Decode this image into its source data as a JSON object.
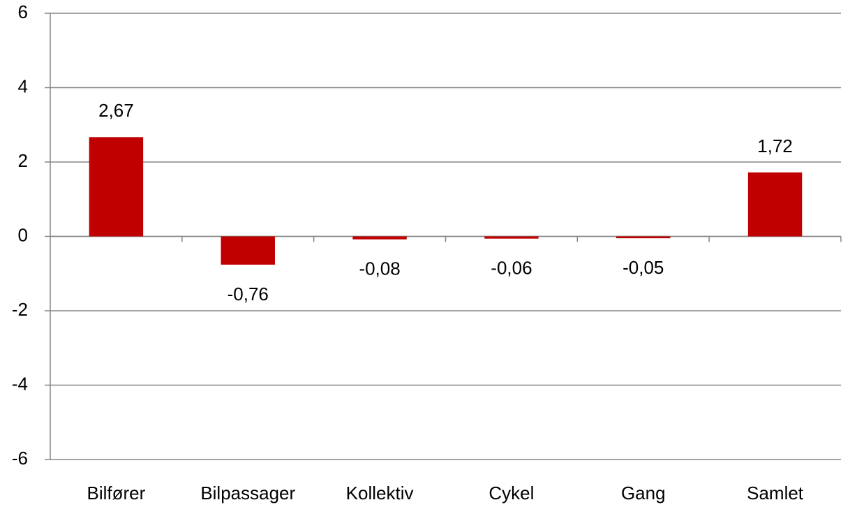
{
  "chart_data": {
    "type": "bar",
    "categories": [
      "Bilfører",
      "Bilpassager",
      "Kollektiv",
      "Cykel",
      "Gang",
      "Samlet"
    ],
    "values": [
      2.67,
      -0.76,
      -0.08,
      -0.06,
      -0.05,
      1.72
    ],
    "value_labels": [
      "2,67",
      "-0,76",
      "-0,08",
      "-0,06",
      "-0,05",
      "1,72"
    ],
    "color": "#c00000",
    "ylim": [
      -6,
      6
    ],
    "yticks": [
      -6,
      -4,
      -2,
      0,
      2,
      4,
      6
    ],
    "grid": true
  }
}
